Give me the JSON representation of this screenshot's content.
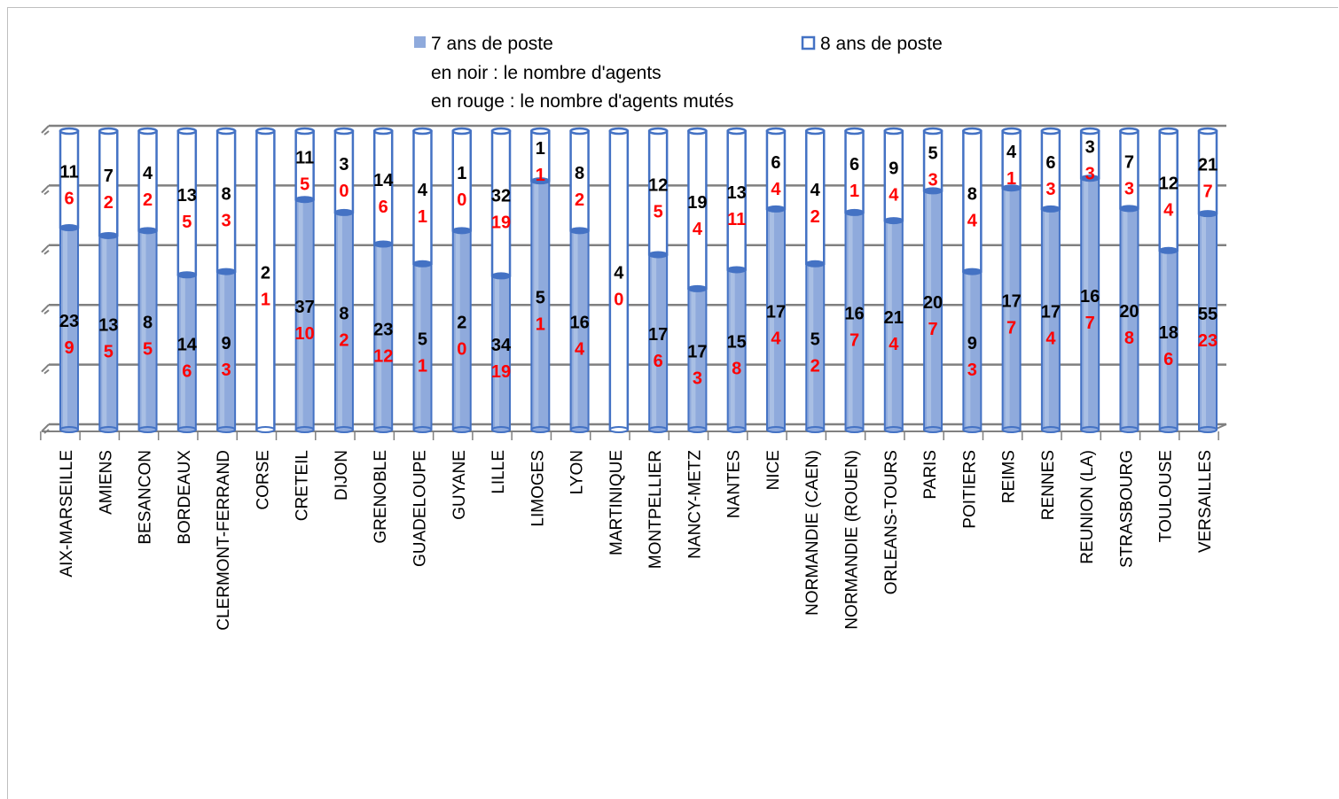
{
  "legend": {
    "series1": "7 ans de poste",
    "series2": "8 ans de poste",
    "note1": "en noir : le nombre d'agents",
    "note2": "en rouge : le nombre d'agents mutés"
  },
  "colors": {
    "series1_fill": "#8faadc",
    "series1_edge": "#4472c4",
    "series2_fill": "#ffffff",
    "series2_edge": "#4472c4",
    "agents_label": "#000000",
    "mutes_label": "#ff0000",
    "grid": "#808080"
  },
  "chart_data": {
    "type": "bar",
    "stacked": true,
    "normalized_100_percent": true,
    "style": "3d-cylinder",
    "categories": [
      "AIX-MARSEILLE",
      "AMIENS",
      "BESANCON",
      "BORDEAUX",
      "CLERMONT-FERRAND",
      "CORSE",
      "CRETEIL",
      "DIJON",
      "GRENOBLE",
      "GUADELOUPE",
      "GUYANE",
      "LILLE",
      "LIMOGES",
      "LYON",
      "MARTINIQUE",
      "MONTPELLIER",
      "NANCY-METZ",
      "NANTES",
      "NICE",
      "NORMANDIE (CAEN)",
      "NORMANDIE (ROUEN)",
      "ORLEANS-TOURS",
      "PARIS",
      "POITIERS",
      "REIMS",
      "RENNES",
      "REUNION (LA)",
      "STRASBOURG",
      "TOULOUSE",
      "VERSAILLES"
    ],
    "series": [
      {
        "name": "7 ans de poste",
        "agents": [
          23,
          13,
          8,
          14,
          9,
          0,
          37,
          8,
          23,
          5,
          2,
          34,
          5,
          16,
          0,
          17,
          17,
          15,
          17,
          5,
          16,
          21,
          20,
          9,
          17,
          17,
          16,
          20,
          18,
          55
        ],
        "mutes": [
          9,
          5,
          5,
          6,
          3,
          0,
          10,
          2,
          12,
          1,
          0,
          19,
          1,
          4,
          0,
          6,
          3,
          8,
          4,
          2,
          7,
          4,
          7,
          3,
          7,
          4,
          7,
          8,
          6,
          23
        ]
      },
      {
        "name": "8 ans de poste",
        "agents": [
          11,
          7,
          4,
          13,
          8,
          2,
          11,
          3,
          14,
          4,
          1,
          32,
          1,
          8,
          4,
          12,
          19,
          13,
          6,
          4,
          6,
          9,
          5,
          8,
          4,
          6,
          3,
          7,
          12,
          21
        ],
        "mutes": [
          6,
          2,
          2,
          5,
          3,
          1,
          5,
          0,
          6,
          1,
          0,
          19,
          1,
          2,
          0,
          5,
          4,
          11,
          4,
          2,
          1,
          4,
          3,
          4,
          1,
          3,
          3,
          3,
          4,
          7
        ]
      }
    ],
    "legend_position": "top",
    "gridlines": true,
    "ylim": [
      0,
      1
    ]
  }
}
